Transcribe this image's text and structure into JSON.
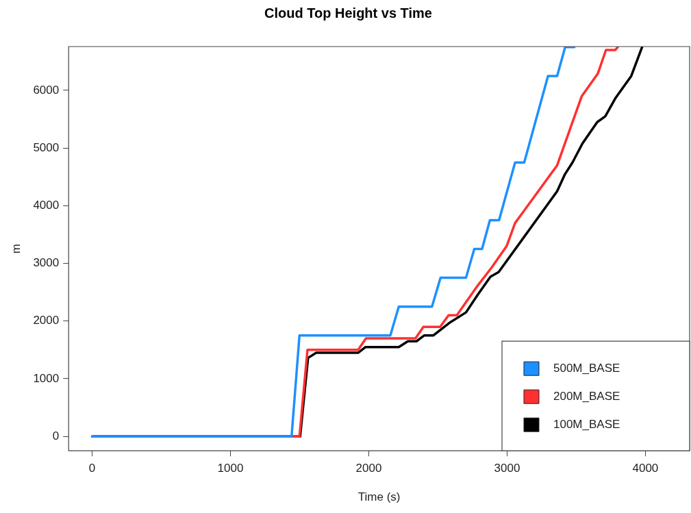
{
  "chart_data": {
    "type": "line",
    "title": "Cloud Top Height vs Time",
    "xlabel": "Time (s)",
    "ylabel": "m",
    "xlim": [
      -170,
      4320
    ],
    "xticks": [
      0,
      1000,
      2000,
      3000,
      4000
    ],
    "ylim": [
      -250,
      6760
    ],
    "yticks": [
      0,
      1000,
      2000,
      3000,
      4000,
      5000,
      6000
    ],
    "grid": false,
    "legend": "bottom right",
    "marker": "none",
    "line_style": "solid",
    "series": [
      {
        "name": "500M_BASE",
        "color": "#1e90ff",
        "x": [
          0,
          1442,
          1499,
          2156,
          2217,
          2457,
          2519,
          2703,
          2763,
          2819,
          2876,
          2942,
          3058,
          3124,
          3296,
          3362,
          3420,
          3486
        ],
        "values": [
          0,
          0,
          1750,
          1750,
          2250,
          2250,
          2750,
          2750,
          3250,
          3250,
          3750,
          3750,
          4750,
          4750,
          6250,
          6250,
          6750,
          6750
        ]
      },
      {
        "name": "200M_BASE",
        "color": "#ff3030",
        "x": [
          0,
          1499,
          1557,
          1923,
          1980,
          2338,
          2395,
          2516,
          2577,
          2637,
          2789,
          2889,
          2997,
          3058,
          3362,
          3540,
          3656,
          3715,
          3782,
          3800
        ],
        "values": [
          0,
          0,
          1500,
          1500,
          1700,
          1700,
          1900,
          1900,
          2100,
          2100,
          2620,
          2930,
          3300,
          3700,
          4700,
          5900,
          6290,
          6700,
          6700,
          6750
        ]
      },
      {
        "name": "100M_BASE",
        "color": "#000000",
        "x": [
          0,
          1504,
          1561,
          1620,
          1923,
          1977,
          2217,
          2283,
          2345,
          2400,
          2466,
          2590,
          2703,
          2789,
          2880,
          2939,
          3362,
          3417,
          3473,
          3545,
          3652,
          3710,
          3782,
          3898,
          3976
        ],
        "values": [
          0,
          0,
          1360,
          1450,
          1450,
          1550,
          1550,
          1650,
          1650,
          1750,
          1750,
          1980,
          2150,
          2460,
          2770,
          2850,
          4250,
          4540,
          4750,
          5080,
          5450,
          5550,
          5860,
          6250,
          6750
        ]
      }
    ]
  }
}
